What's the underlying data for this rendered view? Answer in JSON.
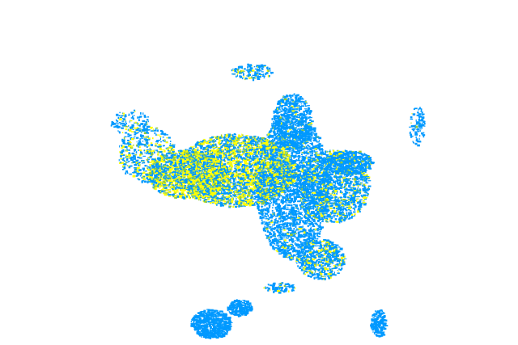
{
  "colors": {
    "background": "#ffffff",
    "primary_echo": "#0099ff",
    "secondary_echo": "#ffff00",
    "tertiary_echo": "#99cc33"
  }
}
